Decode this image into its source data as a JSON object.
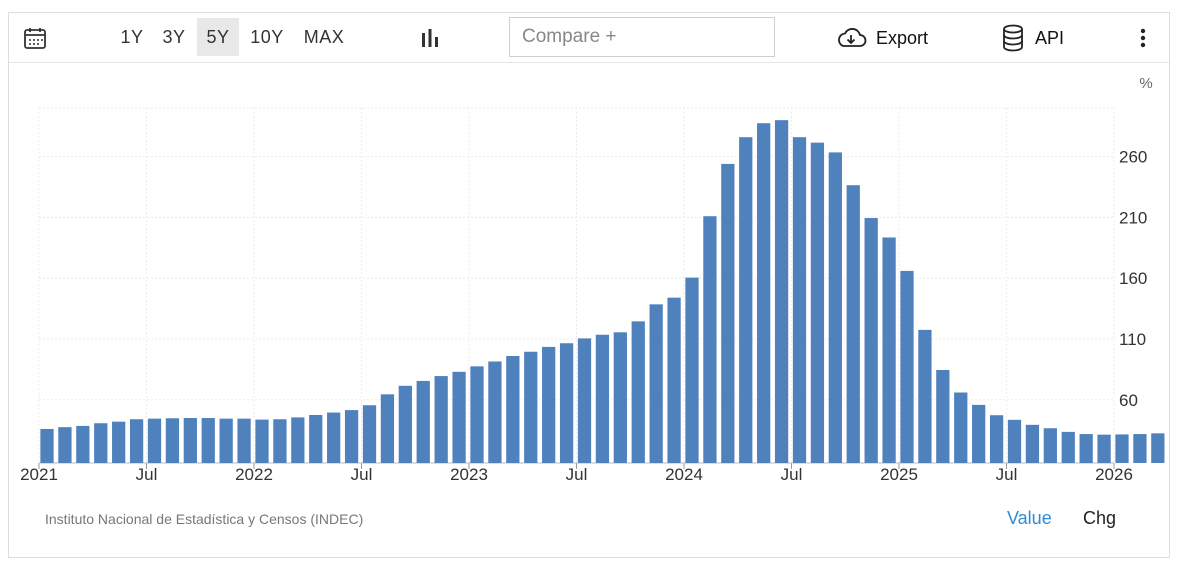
{
  "toolbar": {
    "ranges": [
      "1Y",
      "3Y",
      "5Y",
      "10Y",
      "MAX"
    ],
    "active_range": "5Y",
    "compare_placeholder": "Compare +",
    "export_label": "Export",
    "api_label": "API"
  },
  "footer": {
    "source": "Instituto Nacional de Estadística y Censos (INDEC)",
    "value_tab": "Value",
    "chg_tab": "Chg"
  },
  "colors": {
    "bar": "#4f81bd",
    "accent": "#2d8bd8"
  },
  "chart_data": {
    "type": "bar",
    "ylabel": "%",
    "y_ticks": [
      60,
      110,
      160,
      210,
      260
    ],
    "y_range": [
      8,
      300
    ],
    "x_tick_labels": [
      "2021",
      "Jul",
      "2022",
      "Jul",
      "2023",
      "Jul",
      "2024",
      "Jul",
      "2025",
      "Jul",
      "2026"
    ],
    "start": "2021-01",
    "values": [
      36,
      37.5,
      38.5,
      40.7,
      42,
      44,
      44.5,
      44.8,
      45,
      45,
      44.5,
      44.5,
      43.7,
      44,
      45.5,
      47.5,
      49.5,
      51.5,
      55.5,
      64.5,
      71.5,
      75.5,
      79.5,
      83,
      87.5,
      91.5,
      96,
      99.5,
      103.5,
      106.5,
      110.5,
      113.5,
      115.5,
      124.5,
      138.5,
      144,
      160.5,
      211,
      254,
      276,
      287.5,
      290,
      276,
      271.5,
      263.5,
      236.5,
      209.5,
      193.5,
      166,
      117.5,
      84.5,
      66,
      55.8,
      47.3,
      43.5,
      39.4,
      36.6,
      33.6,
      31.8,
      31.3,
      31.5,
      31.8,
      32.4
    ]
  }
}
